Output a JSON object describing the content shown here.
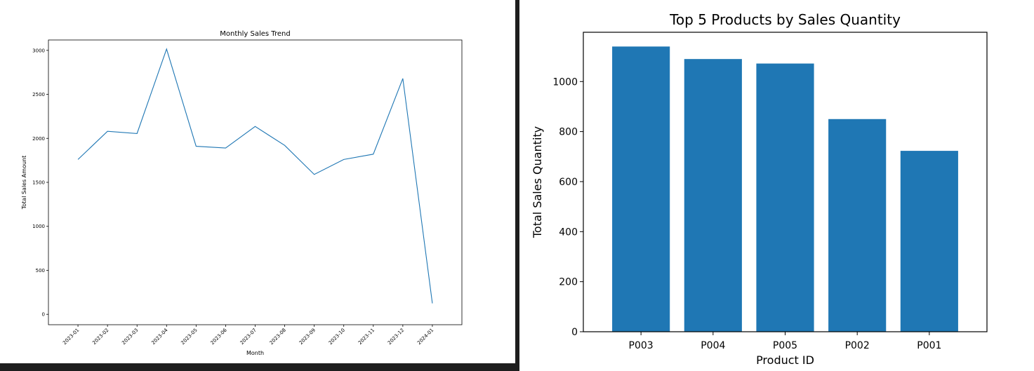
{
  "chart_data": [
    {
      "type": "line",
      "title": "Monthly Sales Trend",
      "xlabel": "Month",
      "ylabel": "Total Sales Amount",
      "x": [
        "2023-01",
        "2023-02",
        "2023-03",
        "2023-04",
        "2023-05",
        "2023-06",
        "2023-07",
        "2023-08",
        "2023-09",
        "2023-10",
        "2023-11",
        "2023-12",
        "2024-01"
      ],
      "series": [
        {
          "values": [
            1760,
            2080,
            2055,
            3015,
            1910,
            1890,
            2135,
            1920,
            1590,
            1760,
            1820,
            2680,
            125
          ],
          "color": "#1f77b4"
        }
      ],
      "ylim": [
        -118,
        3118
      ],
      "yticks": [
        0,
        500,
        1000,
        1500,
        2000,
        2500,
        3000
      ],
      "ytick_labels": [
        "0",
        "500",
        "1000",
        "1500",
        "2000",
        "2500",
        "3000"
      ],
      "grid": false,
      "legend": "none"
    },
    {
      "type": "bar",
      "title": "Top 5 Products by Sales Quantity",
      "xlabel": "Product ID",
      "ylabel": "Total Sales Quantity",
      "categories": [
        "P003",
        "P004",
        "P005",
        "P002",
        "P001"
      ],
      "series": [
        {
          "values": [
            1140,
            1090,
            1072,
            850,
            723
          ],
          "color": "#1f77b4"
        }
      ],
      "ylim": [
        0,
        1197
      ],
      "yticks": [
        0,
        200,
        400,
        600,
        800,
        1000
      ],
      "ytick_labels": [
        "0",
        "200",
        "400",
        "600",
        "800",
        "1000"
      ],
      "grid": false,
      "legend": "none"
    }
  ]
}
